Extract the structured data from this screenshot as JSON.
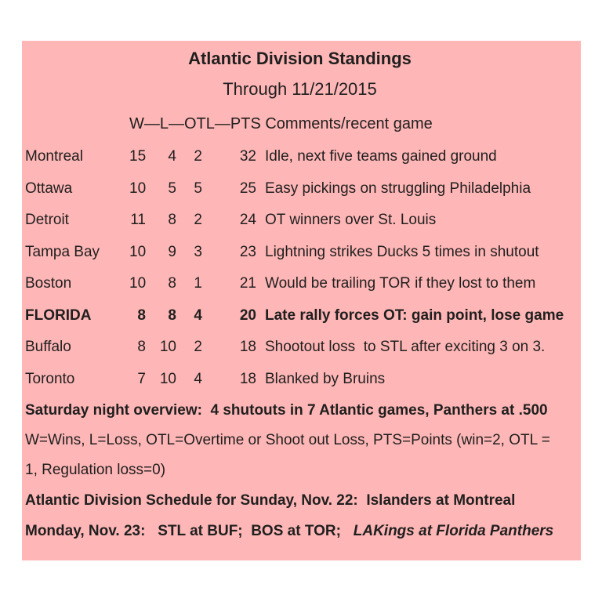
{
  "page": {
    "background_color": "#ffffff",
    "panel_color": "#ffb6b6",
    "text_color": "#1f1f1f"
  },
  "header": {
    "title": "Atlantic Division Standings",
    "subtitle": "Through 11/21/2015",
    "columns_header": "W—L—OTL—PTS Comments/recent game"
  },
  "standings": {
    "rows": [
      {
        "team": "Montreal",
        "w": "15",
        "l": "4",
        "otl": "2",
        "pts": "32",
        "comment": "Idle, next five teams gained ground"
      },
      {
        "team": "Ottawa",
        "w": "10",
        "l": "5",
        "otl": "5",
        "pts": "25",
        "comment": "Easy pickings on struggling Philadelphia"
      },
      {
        "team": "Detroit",
        "w": "11",
        "l": "8",
        "otl": "2",
        "pts": "24",
        "comment": "OT winners over St. Louis"
      },
      {
        "team": "Tampa Bay",
        "w": "10",
        "l": "9",
        "otl": "3",
        "pts": "23",
        "comment": "Lightning strikes Ducks 5 times in shutout"
      },
      {
        "team": "Boston",
        "w": "10",
        "l": "8",
        "otl": "1",
        "pts": "21",
        "comment": "Would be trailing TOR if they lost to them"
      },
      {
        "team": "FLORIDA",
        "w": "8",
        "l": "8",
        "otl": "4",
        "pts": "20",
        "comment": "Late rally forces OT: gain point, lose game"
      },
      {
        "team": "Buffalo",
        "w": "8",
        "l": "10",
        "otl": "2",
        "pts": "18",
        "comment": "Shootout loss  to STL after exciting 3 on 3."
      },
      {
        "team": "Toronto",
        "w": "7",
        "l": "10",
        "otl": "4",
        "pts": "18",
        "comment": "Blanked by Bruins"
      }
    ]
  },
  "notes": {
    "saturday_overview": "Saturday night overview:  4 shutouts in 7 Atlantic games, Panthers at .500",
    "legend": "W=Wins, L=Loss, OTL=Overtime or Shoot out Loss, PTS=Points (win=2, OTL =\n1, Regulation loss=0)",
    "sunday_schedule": "Atlantic Division Schedule for Sunday, Nov. 22:  Islanders at Montreal",
    "monday_prefix": "Monday, Nov. 23:   STL at BUF;  BOS at TOR;   ",
    "monday_italic": "LAKings at Florida Panthers"
  }
}
